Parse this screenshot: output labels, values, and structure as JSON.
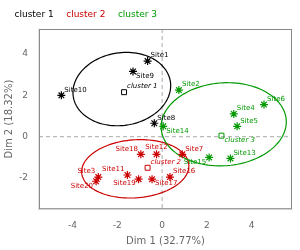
{
  "chart_data": {
    "type": "scatter",
    "xlabel": "Dim 1 (32.77%)",
    "ylabel": "Dim 2 (18.32%)",
    "xlim": [
      -5.5,
      5.8
    ],
    "ylim": [
      -3.5,
      5.2
    ],
    "xticks": [
      -4,
      -2,
      0,
      2,
      4
    ],
    "yticks": [
      -2,
      0,
      2,
      4
    ],
    "grid": false,
    "legend": "upper left",
    "hlines": [
      0
    ],
    "vlines": [
      0
    ],
    "series": [
      {
        "name": "cluster 1",
        "color": "#000000",
        "marker": "star",
        "points": [
          {
            "x": -0.65,
            "y": 3.65,
            "label": "Site1"
          },
          {
            "x": -1.3,
            "y": 3.15,
            "label": "Site9"
          },
          {
            "x": -4.5,
            "y": 2.0,
            "label": "Site10"
          },
          {
            "x": -0.35,
            "y": 0.65,
            "label": "Site8"
          }
        ],
        "centroid": {
          "x": -1.7,
          "y": 2.15,
          "label": "cluster 1",
          "marker": "square"
        },
        "ellipse": {
          "cx": -1.8,
          "cy": 2.3,
          "width": 4.4,
          "height": 3.5,
          "angle": 12
        }
      },
      {
        "name": "cluster 2",
        "color": "#cc0000",
        "marker": "star",
        "points": [
          {
            "x": -0.95,
            "y": -0.85,
            "label": "Site18"
          },
          {
            "x": -0.25,
            "y": -0.85,
            "label": "Site12"
          },
          {
            "x": 0.9,
            "y": -0.85,
            "label": "Site7"
          },
          {
            "x": -1.55,
            "y": -1.85,
            "label": "Site11"
          },
          {
            "x": -1.05,
            "y": -2.05,
            "label": "Site19"
          },
          {
            "x": -0.45,
            "y": -2.05,
            "label": "Site17"
          },
          {
            "x": 0.35,
            "y": -1.95,
            "label": "Site16"
          },
          {
            "x": -2.85,
            "y": -1.95,
            "label": "Site3"
          },
          {
            "x": -2.95,
            "y": -2.15,
            "label": "Site20"
          }
        ],
        "centroid": {
          "x": -0.65,
          "y": -1.5,
          "label": "cluster 2",
          "marker": "square"
        },
        "ellipse": {
          "cx": -1.2,
          "cy": -1.55,
          "width": 4.8,
          "height": 2.8,
          "angle": 5
        }
      },
      {
        "name": "cluster 3",
        "color": "#009900",
        "marker": "star",
        "points": [
          {
            "x": 0.75,
            "y": 2.25,
            "label": "Site2"
          },
          {
            "x": 0.05,
            "y": 0.5,
            "label": "Site14"
          },
          {
            "x": 3.2,
            "y": 1.1,
            "label": "Site4"
          },
          {
            "x": 3.35,
            "y": 0.5,
            "label": "Site5"
          },
          {
            "x": 4.55,
            "y": 1.55,
            "label": "Site6"
          },
          {
            "x": 2.1,
            "y": -1.0,
            "label": "Site15"
          },
          {
            "x": 3.05,
            "y": -1.05,
            "label": "Site13"
          }
        ],
        "centroid": {
          "x": 2.65,
          "y": 0.05,
          "label": "cluster 3",
          "marker": "square"
        },
        "ellipse": {
          "cx": 2.75,
          "cy": 0.6,
          "width": 5.6,
          "height": 4.0,
          "angle": 5
        }
      }
    ]
  }
}
